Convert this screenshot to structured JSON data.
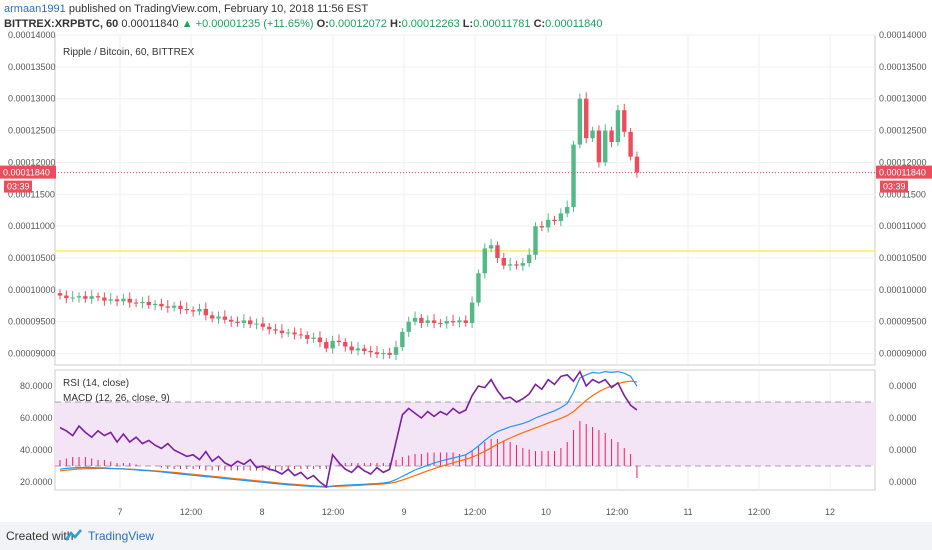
{
  "header": {
    "publisher": "armaan1991",
    "published_text": "published on TradingView.com, February 10, 2018 11:56 EST",
    "symbol": "BITTREX:XRPBTC, 60",
    "last": "0.00011840",
    "change": "▲ +0.00001235 (+11.65%)",
    "o_label": "O:",
    "o_value": "0.00012072",
    "h_label": "H:",
    "h_value": "0.00012263",
    "l_label": "L:",
    "l_value": "0.00011781",
    "c_label": "C:",
    "c_value": "0.00011840"
  },
  "footer": {
    "created_with": "Created with",
    "brand": "TradingView"
  },
  "colors": {
    "up": "#53b987",
    "down": "#eb4d5c",
    "rsi": "#7b1fa2",
    "macd": "#2196f3",
    "signal": "#ff6d00",
    "hist": "#e91e63",
    "level": "#ffeb3b",
    "band": "#f3e5f5",
    "price_line": "#eb4d5c"
  },
  "chart_data": [
    {
      "type": "candlestick",
      "title": "Ripple / Bitcoin, 60, BITTREX",
      "yticks": [
        "0.00014000",
        "0.00013500",
        "0.00013000",
        "0.00012500",
        "0.00012000",
        "0.00011500",
        "0.00011000",
        "0.00010500",
        "0.00010000",
        "0.00009500",
        "0.00009000"
      ],
      "ylim": [
        8.82e-05,
        0.00014
      ],
      "xticks": [
        "7",
        "12:00",
        "8",
        "12:00",
        "9",
        "12:00",
        "10",
        "12:00",
        "11",
        "12:00",
        "12"
      ],
      "last_price_label": "0.00011840",
      "countdown": "03:39",
      "level": 0.0001061,
      "closes": [
        9.91e-05,
        9.87e-05,
        9.88e-05,
        9.9e-05,
        9.86e-05,
        9.9e-05,
        9.88e-05,
        9.83e-05,
        9.85e-05,
        9.82e-05,
        9.86e-05,
        9.8e-05,
        9.79e-05,
        9.81e-05,
        9.76e-05,
        9.78e-05,
        9.74e-05,
        9.72e-05,
        9.75e-05,
        9.7e-05,
        9.68e-05,
        9.66e-05,
        9.7e-05,
        9.6e-05,
        9.55e-05,
        9.58e-05,
        9.53e-05,
        9.5e-05,
        9.48e-05,
        9.52e-05,
        9.46e-05,
        9.47e-05,
        9.42e-05,
        9.38e-05,
        9.36e-05,
        9.32e-05,
        9.33e-05,
        9.3e-05,
        9.29e-05,
        9.23e-05,
        9.25e-05,
        9.18e-05,
        9.08e-05,
        9.2e-05,
        9.18e-05,
        9.11e-05,
        9.05e-05,
        9.08e-05,
        9.04e-05,
        9.02e-05,
        8.99e-05,
        9.01e-05,
        8.98e-05,
        9.1e-05,
        9.34e-05,
        9.5e-05,
        9.56e-05,
        9.48e-05,
        9.52e-05,
        9.48e-05,
        9.47e-05,
        9.51e-05,
        9.49e-05,
        9.52e-05,
        9.48e-05,
        9.8e-05,
        0.0001026,
        0.0001065,
        0.000107,
        0.000105,
        0.0001038,
        0.000104,
        0.0001038,
        0.0001042,
        0.0001055,
        0.00011,
        0.0001098,
        0.000111,
        0.0001108,
        0.000112,
        0.000113,
        0.0001228,
        0.00013,
        0.0001238,
        0.000125,
        0.00012,
        0.000125,
        0.0001232,
        0.0001282,
        0.0001248,
        0.0001209,
        0.0001184
      ]
    },
    {
      "type": "line",
      "rsi_label": "RSI (14, close)",
      "macd_label": "MACD (12, 26, close, 9)",
      "yticks_left": [
        "80.0000",
        "60.0000",
        "40.0000",
        "20.0000"
      ],
      "yticks_right": [
        "0.0000",
        "0.0000",
        "0.0000",
        "0.0000"
      ],
      "ylim": [
        15,
        90
      ],
      "band": [
        30,
        70
      ],
      "rsi": [
        54,
        52,
        49,
        55,
        51,
        48,
        52,
        49,
        51,
        45,
        50,
        45,
        48,
        44,
        46,
        43,
        41,
        44,
        40,
        38,
        36,
        37,
        34,
        39,
        33,
        36,
        32,
        30,
        33,
        31,
        34,
        29,
        30,
        28,
        27,
        25,
        28,
        24,
        26,
        22,
        24,
        20,
        17,
        37,
        32,
        28,
        26,
        30,
        27,
        25,
        29,
        26,
        28,
        45,
        62,
        66,
        63,
        60,
        64,
        61,
        64,
        62,
        66,
        63,
        65,
        74,
        80,
        79,
        84,
        77,
        72,
        73,
        70,
        72,
        75,
        81,
        78,
        84,
        81,
        86,
        87,
        83,
        89,
        80,
        84,
        82,
        84,
        79,
        82,
        74,
        68,
        65
      ],
      "macd": [
        28,
        28.5,
        28.8,
        29,
        29.1,
        29,
        28.9,
        28.8,
        28.5,
        28.3,
        28.1,
        27.9,
        27.6,
        27.2,
        27,
        26.7,
        26.3,
        25.8,
        25.4,
        25,
        24.6,
        24.2,
        23.8,
        23.4,
        23,
        22.6,
        22.2,
        21.8,
        21.4,
        21,
        20.6,
        20.2,
        19.8,
        19.4,
        19,
        18.6,
        18.2,
        18,
        17.7,
        17.4,
        17.2,
        17,
        16.8,
        17.5,
        17.8,
        18,
        18.2,
        18.4,
        18.6,
        18.8,
        19,
        19.4,
        20,
        21.5,
        23.5,
        25.5,
        27.5,
        29,
        30.5,
        31.8,
        33,
        34,
        35,
        36,
        37,
        39.5,
        42.5,
        46,
        49,
        51.5,
        53,
        54.5,
        55.5,
        56.5,
        58,
        60,
        61.5,
        63,
        64.5,
        66.5,
        69,
        76,
        85,
        87,
        88.5,
        88,
        89,
        88.5,
        89,
        88,
        86,
        80
      ],
      "signal": [
        27,
        27.4,
        27.8,
        28.1,
        28.3,
        28.4,
        28.5,
        28.5,
        28.4,
        28.3,
        28.2,
        28,
        27.8,
        27.5,
        27.3,
        27,
        26.7,
        26.4,
        26,
        25.6,
        25.2,
        24.8,
        24.4,
        24,
        23.6,
        23.2,
        22.8,
        22.4,
        22,
        21.6,
        21.2,
        20.8,
        20.4,
        20,
        19.6,
        19.2,
        18.8,
        18.5,
        18.2,
        17.9,
        17.6,
        17.4,
        17.2,
        17.2,
        17.3,
        17.5,
        17.7,
        17.9,
        18.1,
        18.3,
        18.5,
        18.8,
        19.2,
        20,
        21.2,
        22.6,
        24,
        25.5,
        27,
        28.3,
        29.6,
        30.8,
        32,
        33.1,
        34.2,
        35.5,
        37.2,
        39.2,
        41.4,
        43.6,
        45.6,
        47.5,
        49.2,
        50.8,
        52.3,
        53.8,
        55.3,
        56.8,
        58.3,
        59.8,
        61.5,
        64,
        67.5,
        71,
        74,
        76.5,
        78.5,
        80,
        81.5,
        82.5,
        83,
        82.5
      ],
      "hist": [
        2,
        2.5,
        3,
        3,
        3,
        2.5,
        2,
        2,
        1.5,
        1,
        1,
        1,
        0.5,
        0,
        0,
        0,
        -0.5,
        -1,
        -1,
        -1,
        -1,
        -1,
        -1,
        -1.5,
        -1.5,
        -1.5,
        -1.5,
        -1.5,
        -1.5,
        -1.5,
        -1.5,
        -1.5,
        -1.5,
        -1.5,
        -1.5,
        -1.5,
        -1.5,
        -1,
        -1,
        -1,
        -1,
        -1,
        -1,
        0,
        0.5,
        1,
        1,
        1,
        1,
        1,
        1,
        1,
        1,
        2,
        3,
        3.5,
        4,
        4,
        4.5,
        4.5,
        4.5,
        4.5,
        4.5,
        4,
        4,
        5,
        6.5,
        8,
        9,
        9,
        8.5,
        8,
        7,
        6,
        5.5,
        5,
        5,
        5,
        5,
        6,
        8,
        12,
        15,
        14,
        13,
        12,
        11,
        9,
        8,
        6,
        4,
        -4
      ]
    }
  ]
}
